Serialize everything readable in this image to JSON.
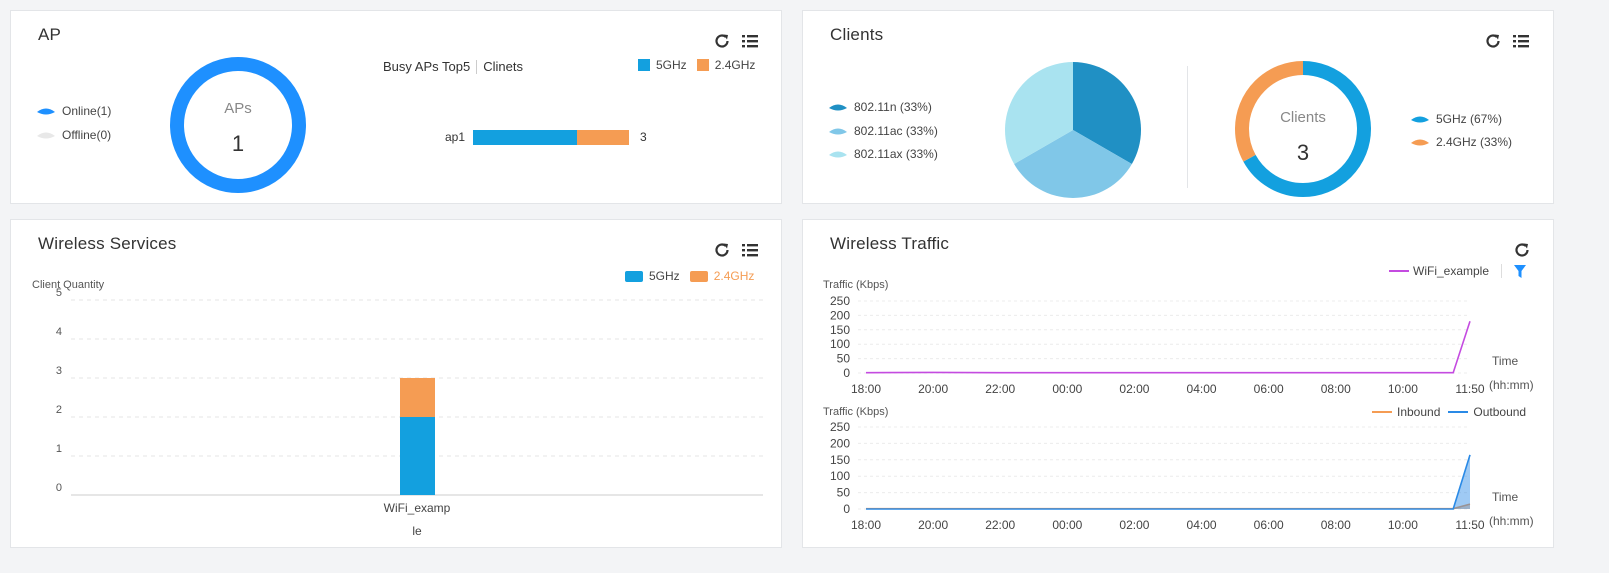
{
  "ap_panel": {
    "title": "AP",
    "legend": [
      {
        "label": "Online(1)",
        "color": "#1e90ff"
      },
      {
        "label": "Offline(0)",
        "color": "#e8e8e8"
      }
    ],
    "donut_label": "APs",
    "donut_value": "1",
    "tab_busy": "Busy APs Top5",
    "tab_clients": "Clinets",
    "bar_legend": [
      {
        "label": "5GHz",
        "color": "#13a0df"
      },
      {
        "label": "2.4GHz",
        "color": "#f59c53"
      }
    ],
    "bar_item": {
      "label": "ap1",
      "value_5g": 2,
      "value_24g": 1,
      "total": "3"
    }
  },
  "clients_panel": {
    "title": "Clients",
    "proto_legend": [
      {
        "label": "802.11n (33%)",
        "color": "#2090c4"
      },
      {
        "label": "802.11ac (33%)",
        "color": "#80c7e8"
      },
      {
        "label": "802.11ax (33%)",
        "color": "#a9e3f0"
      }
    ],
    "donut_label": "Clients",
    "donut_value": "3",
    "band_legend": [
      {
        "label": "5GHz (67%)",
        "color": "#13a0df"
      },
      {
        "label": "2.4GHz (33%)",
        "color": "#f59c53"
      }
    ]
  },
  "wireless_services": {
    "title": "Wireless Services",
    "legend": [
      {
        "label": "5GHz",
        "color": "#13a0df"
      },
      {
        "label": "2.4GHz",
        "color": "#f59c53"
      }
    ],
    "y_title": "Client Quantity",
    "x_label_line1": "WiFi_examp",
    "x_label_line2": "le"
  },
  "wireless_traffic": {
    "title": "Wireless Traffic",
    "top_legend": "WiFi_example",
    "top_y_title": "Traffic (Kbps)",
    "bottom_y_title": "Traffic (Kbps)",
    "bottom_legend": [
      {
        "label": "Inbound",
        "color": "#f59c53"
      },
      {
        "label": "Outbound",
        "color": "#2a8ae6"
      }
    ],
    "time_label": "Time",
    "time_unit": "(hh:mm)"
  },
  "chart_data": [
    {
      "type": "bar",
      "name": "busy-aps",
      "categories": [
        "ap1"
      ],
      "series": [
        {
          "name": "5GHz",
          "values": [
            2
          ]
        },
        {
          "name": "2.4GHz",
          "values": [
            1
          ]
        }
      ]
    },
    {
      "type": "pie",
      "name": "client-protocols",
      "labels": [
        "802.11n",
        "802.11ac",
        "802.11ax"
      ],
      "values": [
        33.3,
        33.3,
        33.3
      ]
    },
    {
      "type": "pie",
      "name": "client-bands",
      "labels": [
        "5GHz",
        "2.4GHz"
      ],
      "values": [
        67,
        33
      ]
    },
    {
      "type": "bar",
      "name": "wireless-services",
      "categories": [
        "WiFi_example"
      ],
      "series": [
        {
          "name": "5GHz",
          "values": [
            2
          ]
        },
        {
          "name": "2.4GHz",
          "values": [
            1
          ]
        }
      ],
      "ylabel": "Client Quantity",
      "ylim": [
        0,
        5
      ],
      "yticks": [
        "0",
        "1",
        "2",
        "3",
        "4",
        "5"
      ]
    },
    {
      "type": "line",
      "name": "traffic-ssid",
      "x": [
        "18:00",
        "20:00",
        "22:00",
        "00:00",
        "02:00",
        "04:00",
        "06:00",
        "08:00",
        "10:00",
        "11:30",
        "11:50"
      ],
      "series": [
        {
          "name": "WiFi_example",
          "values": [
            1,
            2,
            1,
            1,
            1,
            1,
            1,
            1,
            1,
            1,
            180
          ]
        }
      ],
      "xticks": [
        "18:00",
        "20:00",
        "22:00",
        "00:00",
        "02:00",
        "04:00",
        "06:00",
        "08:00",
        "10:00",
        "11:50"
      ],
      "yticks": [
        "0",
        "50",
        "100",
        "150",
        "200",
        "250"
      ],
      "ylabel": "Traffic (Kbps)",
      "ylim": [
        0,
        250
      ]
    },
    {
      "type": "area",
      "name": "traffic-inout",
      "x": [
        "18:00",
        "20:00",
        "22:00",
        "00:00",
        "02:00",
        "04:00",
        "06:00",
        "08:00",
        "10:00",
        "11:30",
        "11:50"
      ],
      "series": [
        {
          "name": "Inbound",
          "values": [
            1,
            1,
            1,
            1,
            1,
            1,
            1,
            1,
            1,
            1,
            15
          ]
        },
        {
          "name": "Outbound",
          "values": [
            0,
            0,
            0,
            0,
            0,
            0,
            0,
            0,
            0,
            0,
            165
          ]
        }
      ],
      "xticks": [
        "18:00",
        "20:00",
        "22:00",
        "00:00",
        "02:00",
        "04:00",
        "06:00",
        "08:00",
        "10:00",
        "11:50"
      ],
      "yticks": [
        "0",
        "50",
        "100",
        "150",
        "200",
        "250"
      ],
      "ylabel": "Traffic (Kbps)",
      "ylim": [
        0,
        250
      ]
    }
  ]
}
